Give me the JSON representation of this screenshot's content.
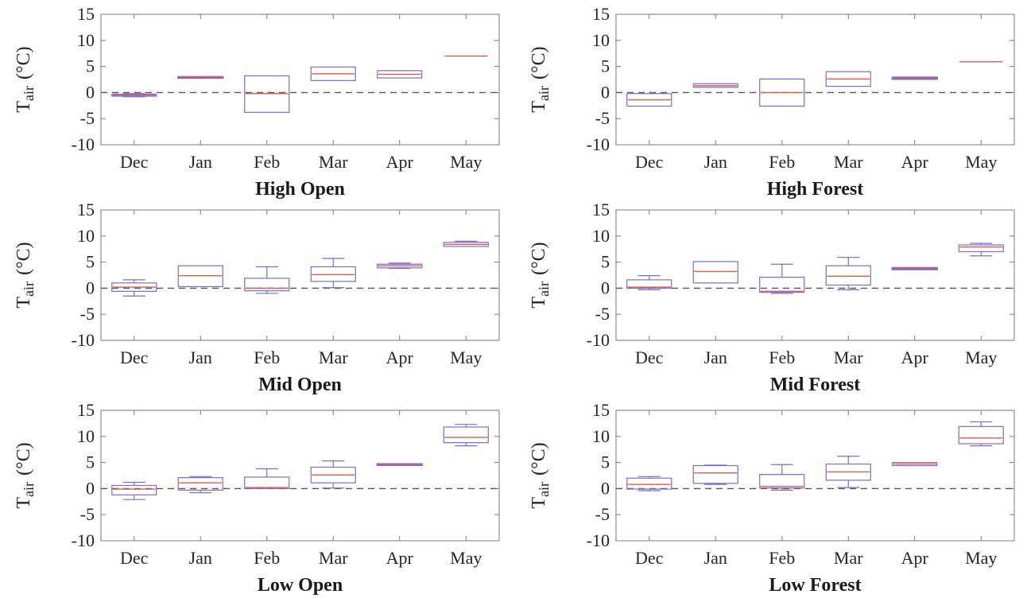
{
  "chart_data": [
    {
      "type": "box",
      "title": "High Open",
      "ylabel_main": "T",
      "ylabel_sub": "air",
      "ylabel_unit": "(°C)",
      "ylim": [
        -10,
        15
      ],
      "yticks": [
        "15",
        "10",
        "5",
        "0",
        "-5",
        "-10"
      ],
      "categories": [
        "Dec",
        "Jan",
        "Feb",
        "Mar",
        "Apr",
        "May"
      ],
      "reference_line": 0,
      "boxes": [
        {
          "whisker_low": -0.8,
          "q1": -0.7,
          "median": -0.5,
          "q3": -0.3,
          "whisker_high": -0.2
        },
        {
          "whisker_low": 2.8,
          "q1": 2.8,
          "median": 2.9,
          "q3": 3.0,
          "whisker_high": 3.0
        },
        {
          "whisker_low": -3.8,
          "q1": -3.8,
          "median": -0.2,
          "q3": 3.2,
          "whisker_high": 3.2
        },
        {
          "whisker_low": 2.3,
          "q1": 2.3,
          "median": 3.6,
          "q3": 4.9,
          "whisker_high": 4.9
        },
        {
          "whisker_low": 2.8,
          "q1": 2.8,
          "median": 3.5,
          "q3": 4.2,
          "whisker_high": 4.2
        },
        {
          "whisker_low": 7.0,
          "q1": 7.0,
          "median": 7.0,
          "q3": 7.0,
          "whisker_high": 7.0
        }
      ]
    },
    {
      "type": "box",
      "title": "High Forest",
      "ylabel_main": "T",
      "ylabel_sub": "air",
      "ylabel_unit": "(°C)",
      "ylim": [
        -10,
        15
      ],
      "yticks": [
        "15",
        "10",
        "5",
        "0",
        "-5",
        "-10"
      ],
      "categories": [
        "Dec",
        "Jan",
        "Feb",
        "Mar",
        "Apr",
        "May"
      ],
      "reference_line": 0,
      "boxes": [
        {
          "whisker_low": -2.6,
          "q1": -2.6,
          "median": -1.4,
          "q3": -0.2,
          "whisker_high": -0.2
        },
        {
          "whisker_low": 1.0,
          "q1": 1.0,
          "median": 1.3,
          "q3": 1.7,
          "whisker_high": 1.7
        },
        {
          "whisker_low": -2.6,
          "q1": -2.6,
          "median": 0.0,
          "q3": 2.6,
          "whisker_high": 2.6
        },
        {
          "whisker_low": 1.2,
          "q1": 1.2,
          "median": 2.6,
          "q3": 4.0,
          "whisker_high": 4.0
        },
        {
          "whisker_low": 2.6,
          "q1": 2.6,
          "median": 2.8,
          "q3": 2.9,
          "whisker_high": 2.9
        },
        {
          "whisker_low": 5.9,
          "q1": 5.9,
          "median": 5.9,
          "q3": 5.9,
          "whisker_high": 5.9
        }
      ]
    },
    {
      "type": "box",
      "title": "Mid Open",
      "ylabel_main": "T",
      "ylabel_sub": "air",
      "ylabel_unit": "(°C)",
      "ylim": [
        -10,
        15
      ],
      "yticks": [
        "15",
        "10",
        "5",
        "0",
        "-5",
        "-10"
      ],
      "categories": [
        "Dec",
        "Jan",
        "Feb",
        "Mar",
        "Apr",
        "May"
      ],
      "reference_line": 0,
      "boxes": [
        {
          "whisker_low": -1.5,
          "q1": -0.6,
          "median": 0.2,
          "q3": 1.0,
          "whisker_high": 1.6
        },
        {
          "whisker_low": 0.3,
          "q1": 0.3,
          "median": 2.4,
          "q3": 4.3,
          "whisker_high": 4.3
        },
        {
          "whisker_low": -1.0,
          "q1": -0.5,
          "median": 0.0,
          "q3": 1.9,
          "whisker_high": 4.1
        },
        {
          "whisker_low": 0.1,
          "q1": 1.3,
          "median": 2.6,
          "q3": 4.1,
          "whisker_high": 5.7
        },
        {
          "whisker_low": 3.8,
          "q1": 3.9,
          "median": 4.3,
          "q3": 4.6,
          "whisker_high": 4.8
        },
        {
          "whisker_low": 8.0,
          "q1": 8.0,
          "median": 8.4,
          "q3": 8.8,
          "whisker_high": 9.0
        }
      ]
    },
    {
      "type": "box",
      "title": "Mid Forest",
      "ylabel_main": "T",
      "ylabel_sub": "air",
      "ylabel_unit": "(°C)",
      "ylim": [
        -10,
        15
      ],
      "yticks": [
        "15",
        "10",
        "5",
        "0",
        "-5",
        "-10"
      ],
      "categories": [
        "Dec",
        "Jan",
        "Feb",
        "Mar",
        "Apr",
        "May"
      ],
      "reference_line": 0,
      "boxes": [
        {
          "whisker_low": -0.3,
          "q1": 0.0,
          "median": 0.2,
          "q3": 1.6,
          "whisker_high": 2.4
        },
        {
          "whisker_low": 1.0,
          "q1": 1.0,
          "median": 3.2,
          "q3": 5.1,
          "whisker_high": 5.1
        },
        {
          "whisker_low": -1.0,
          "q1": -0.8,
          "median": -0.6,
          "q3": 2.1,
          "whisker_high": 4.6
        },
        {
          "whisker_low": -0.3,
          "q1": 0.6,
          "median": 2.3,
          "q3": 4.3,
          "whisker_high": 5.9
        },
        {
          "whisker_low": 3.6,
          "q1": 3.6,
          "median": 3.8,
          "q3": 3.9,
          "whisker_high": 3.9
        },
        {
          "whisker_low": 6.2,
          "q1": 7.0,
          "median": 7.9,
          "q3": 8.3,
          "whisker_high": 8.6
        }
      ]
    },
    {
      "type": "box",
      "title": "Low Open",
      "ylabel_main": "T",
      "ylabel_sub": "air",
      "ylabel_unit": "(°C)",
      "ylim": [
        -10,
        15
      ],
      "yticks": [
        "15",
        "10",
        "5",
        "0",
        "-5",
        "-10"
      ],
      "categories": [
        "Dec",
        "Jan",
        "Feb",
        "Mar",
        "Apr",
        "May"
      ],
      "reference_line": 0,
      "boxes": [
        {
          "whisker_low": -2.1,
          "q1": -1.2,
          "median": -0.1,
          "q3": 0.6,
          "whisker_high": 1.2
        },
        {
          "whisker_low": -0.8,
          "q1": -0.3,
          "median": 1.1,
          "q3": 2.1,
          "whisker_high": 2.3
        },
        {
          "whisker_low": 0.0,
          "q1": 0.0,
          "median": 0.2,
          "q3": 2.2,
          "whisker_high": 3.8
        },
        {
          "whisker_low": 0.1,
          "q1": 1.1,
          "median": 2.6,
          "q3": 4.1,
          "whisker_high": 5.3
        },
        {
          "whisker_low": 4.5,
          "q1": 4.5,
          "median": 4.6,
          "q3": 4.7,
          "whisker_high": 4.7
        },
        {
          "whisker_low": 8.2,
          "q1": 8.8,
          "median": 9.8,
          "q3": 11.8,
          "whisker_high": 12.3
        }
      ]
    },
    {
      "type": "box",
      "title": "Low Forest",
      "ylabel_main": "T",
      "ylabel_sub": "air",
      "ylabel_unit": "(°C)",
      "ylim": [
        -10,
        15
      ],
      "yticks": [
        "15",
        "10",
        "5",
        "0",
        "-5",
        "-10"
      ],
      "categories": [
        "Dec",
        "Jan",
        "Feb",
        "Mar",
        "Apr",
        "May"
      ],
      "reference_line": 0,
      "boxes": [
        {
          "whisker_low": -0.4,
          "q1": -0.1,
          "median": 0.8,
          "q3": 2.0,
          "whisker_high": 2.3
        },
        {
          "whisker_low": 0.8,
          "q1": 1.0,
          "median": 3.0,
          "q3": 4.4,
          "whisker_high": 4.5
        },
        {
          "whisker_low": -0.3,
          "q1": 0.1,
          "median": 0.4,
          "q3": 2.7,
          "whisker_high": 4.6
        },
        {
          "whisker_low": 0.2,
          "q1": 1.6,
          "median": 3.2,
          "q3": 4.7,
          "whisker_high": 6.2
        },
        {
          "whisker_low": 4.4,
          "q1": 4.4,
          "median": 4.7,
          "q3": 5.0,
          "whisker_high": 5.0
        },
        {
          "whisker_low": 8.2,
          "q1": 8.6,
          "median": 9.7,
          "q3": 11.9,
          "whisker_high": 12.8
        }
      ]
    }
  ],
  "colors": {
    "box": "#7b6bd6",
    "median": "#e05a4a",
    "axes": "#7a7a7a",
    "reference_line": "#555555",
    "text": "#262626"
  }
}
